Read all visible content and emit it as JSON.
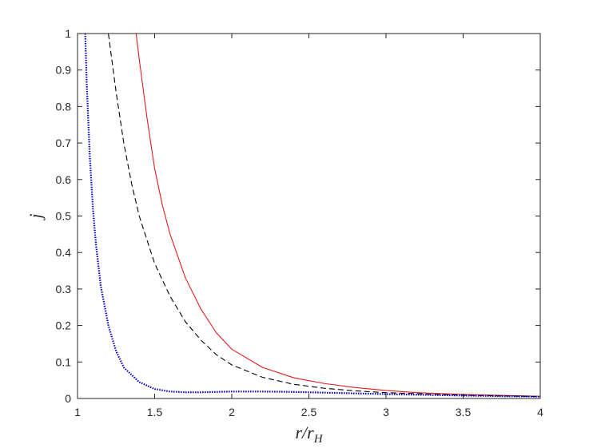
{
  "chart_data": {
    "type": "line",
    "title": "",
    "xlabel": "r/r",
    "xlabel_subscript": "H",
    "ylabel": "j",
    "xlim": [
      1,
      4
    ],
    "ylim": [
      0,
      1
    ],
    "xticks": [
      1,
      1.5,
      2,
      2.5,
      3,
      3.5,
      4
    ],
    "yticks": [
      0,
      0.1,
      0.2,
      0.3,
      0.4,
      0.5,
      0.6,
      0.7,
      0.8,
      0.9,
      1
    ],
    "xtick_labels": [
      "1",
      "1.5",
      "2",
      "2.5",
      "3",
      "3.5",
      "4"
    ],
    "ytick_labels": [
      "0",
      "0.1",
      "0.2",
      "0.3",
      "0.4",
      "0.5",
      "0.6",
      "0.7",
      "0.8",
      "0.9",
      "1"
    ],
    "grid": false,
    "legend": "none",
    "series": [
      {
        "style": "solid",
        "color": "#e41a1c",
        "x": [
          1.38,
          1.4,
          1.45,
          1.5,
          1.55,
          1.6,
          1.7,
          1.8,
          1.9,
          2.0,
          2.2,
          2.4,
          2.6,
          2.8,
          3.0,
          3.2,
          3.5,
          4.0
        ],
        "y": [
          1.0,
          0.93,
          0.77,
          0.63,
          0.53,
          0.45,
          0.33,
          0.245,
          0.18,
          0.135,
          0.085,
          0.057,
          0.041,
          0.03,
          0.022,
          0.016,
          0.011,
          0.006
        ]
      },
      {
        "style": "dashed",
        "color": "#000000",
        "x": [
          1.2,
          1.25,
          1.3,
          1.35,
          1.4,
          1.5,
          1.6,
          1.7,
          1.8,
          1.9,
          2.0,
          2.2,
          2.4,
          2.6,
          2.8,
          3.0,
          3.5,
          4.0
        ],
        "y": [
          1.0,
          0.84,
          0.7,
          0.59,
          0.5,
          0.37,
          0.28,
          0.21,
          0.16,
          0.12,
          0.092,
          0.058,
          0.039,
          0.028,
          0.021,
          0.016,
          0.009,
          0.005
        ]
      },
      {
        "style": "dotted",
        "color": "#0000cc",
        "x": [
          1.05,
          1.06,
          1.08,
          1.1,
          1.12,
          1.15,
          1.2,
          1.25,
          1.3,
          1.4,
          1.5,
          1.6,
          1.7,
          1.8,
          2.0,
          2.2,
          2.4,
          2.6,
          3.0,
          3.5,
          4.0
        ],
        "y": [
          1.0,
          0.86,
          0.66,
          0.52,
          0.42,
          0.31,
          0.2,
          0.13,
          0.085,
          0.045,
          0.026,
          0.019,
          0.017,
          0.017,
          0.019,
          0.019,
          0.018,
          0.016,
          0.012,
          0.008,
          0.005
        ]
      }
    ]
  }
}
